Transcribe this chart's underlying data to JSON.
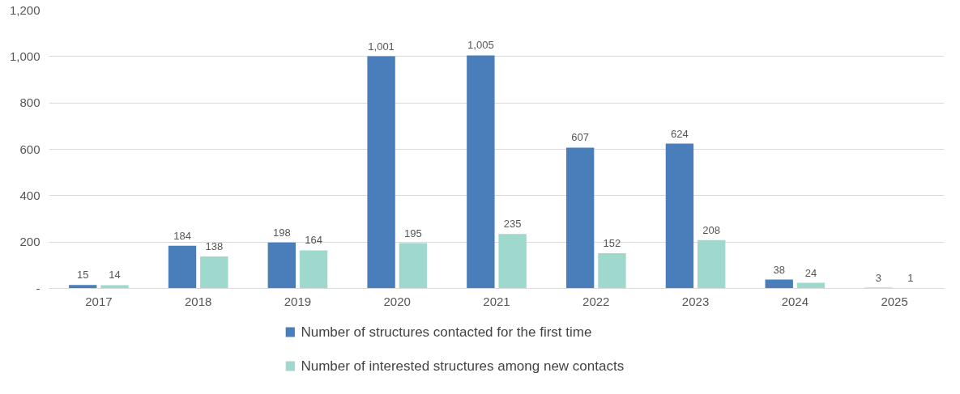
{
  "chart_data": {
    "type": "bar",
    "categories": [
      "2017",
      "2018",
      "2019",
      "2020",
      "2021",
      "2022",
      "2023",
      "2024",
      "2025"
    ],
    "series": [
      {
        "name": "Number of structures contacted for the first time",
        "color": "#4a7ebb",
        "values": [
          15,
          184,
          198,
          1001,
          1005,
          607,
          624,
          38,
          3
        ],
        "value_labels": [
          "15",
          "184",
          "198",
          "1,001",
          "1,005",
          "607",
          "624",
          "38",
          "3"
        ]
      },
      {
        "name": "Number of interested structures among new contacts",
        "color": "#9fd8cc",
        "values": [
          14,
          138,
          164,
          195,
          235,
          152,
          208,
          24,
          1
        ],
        "value_labels": [
          "14",
          "138",
          "164",
          "195",
          "235",
          "152",
          "208",
          "24",
          "1"
        ]
      }
    ],
    "ylim": [
      0,
      1200
    ],
    "yticks": [
      {
        "value": 0,
        "label": "-"
      },
      200,
      400,
      600,
      800,
      {
        "value": 1000,
        "label": "1,000"
      },
      {
        "value": 1200,
        "label": "1,200"
      }
    ],
    "grid": "y",
    "legend": "bottom"
  }
}
